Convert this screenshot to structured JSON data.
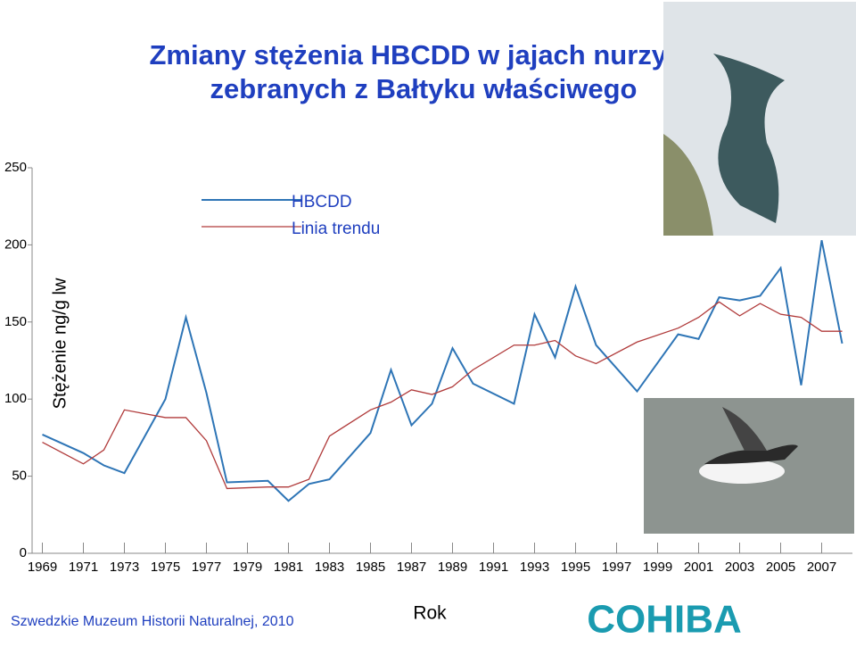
{
  "chart_data": {
    "type": "line",
    "title": [
      "Zmiany stężenia HBCDD w jajach nurzyka",
      "zebranych z Bałtyku właściwego"
    ],
    "x_label": "Rok",
    "y_label": "Stężenie ng/g lw",
    "x": [
      1969,
      1971,
      1972,
      1973,
      1975,
      1976,
      1977,
      1978,
      1980,
      1981,
      1982,
      1983,
      1985,
      1986,
      1987,
      1988,
      1989,
      1990,
      1992,
      1993,
      1994,
      1995,
      1996,
      1998,
      2000,
      2001,
      2002,
      2003,
      2004,
      2005,
      2006,
      2007,
      2008
    ],
    "series": [
      {
        "name": "HBCDD",
        "color": "#2e75b6",
        "values": [
          77,
          65,
          57,
          52,
          100,
          153,
          104,
          46,
          47,
          34,
          45,
          48,
          78,
          119,
          83,
          97,
          133,
          110,
          97,
          155,
          127,
          173,
          135,
          105,
          142,
          139,
          166,
          164,
          167,
          185,
          109,
          203,
          136
        ]
      },
      {
        "name": "Linia trendu",
        "color": "#b03a3a",
        "values": [
          72,
          58,
          67,
          93,
          88,
          88,
          73,
          42,
          43,
          43,
          48,
          76,
          93,
          98,
          106,
          103,
          108,
          119,
          135,
          135,
          138,
          128,
          123,
          137,
          146,
          153,
          163,
          154,
          162,
          155,
          153,
          144,
          144
        ]
      }
    ],
    "xlim": [
      1968.5,
      2008.5
    ],
    "xticks": [
      1969,
      1971,
      1973,
      1975,
      1977,
      1979,
      1981,
      1983,
      1985,
      1987,
      1989,
      1991,
      1993,
      1995,
      1997,
      1999,
      2001,
      2003,
      2005,
      2007
    ],
    "ylim": [
      0,
      250
    ],
    "yticks": [
      0,
      50,
      100,
      150,
      200,
      250
    ],
    "grid": false,
    "footer": "Szwedzkie Muzeum Historii Naturalnej, 2010",
    "logo": "COHIBA"
  }
}
